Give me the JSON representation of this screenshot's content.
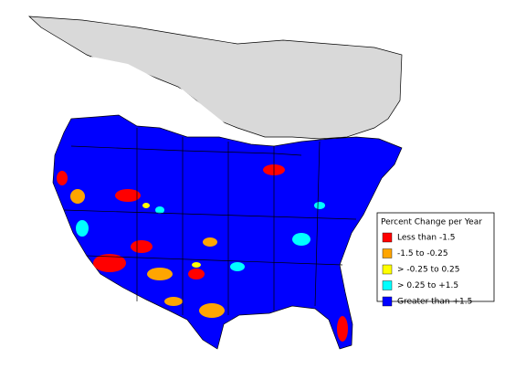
{
  "legend": {
    "title": "Percent Change per Year",
    "items": [
      {
        "label": "Less than -1.5",
        "color": "#ff0000"
      },
      {
        "label": "-1.5 to -0.25",
        "color": "#ffa500"
      },
      {
        "label": "> -0.25 to 0.25",
        "color": "#ffff00"
      },
      {
        "label": "> 0.25 to +1.5",
        "color": "#00ffff"
      },
      {
        "label": "Greater than +1.5",
        "color": "#0000ff"
      }
    ]
  }
}
